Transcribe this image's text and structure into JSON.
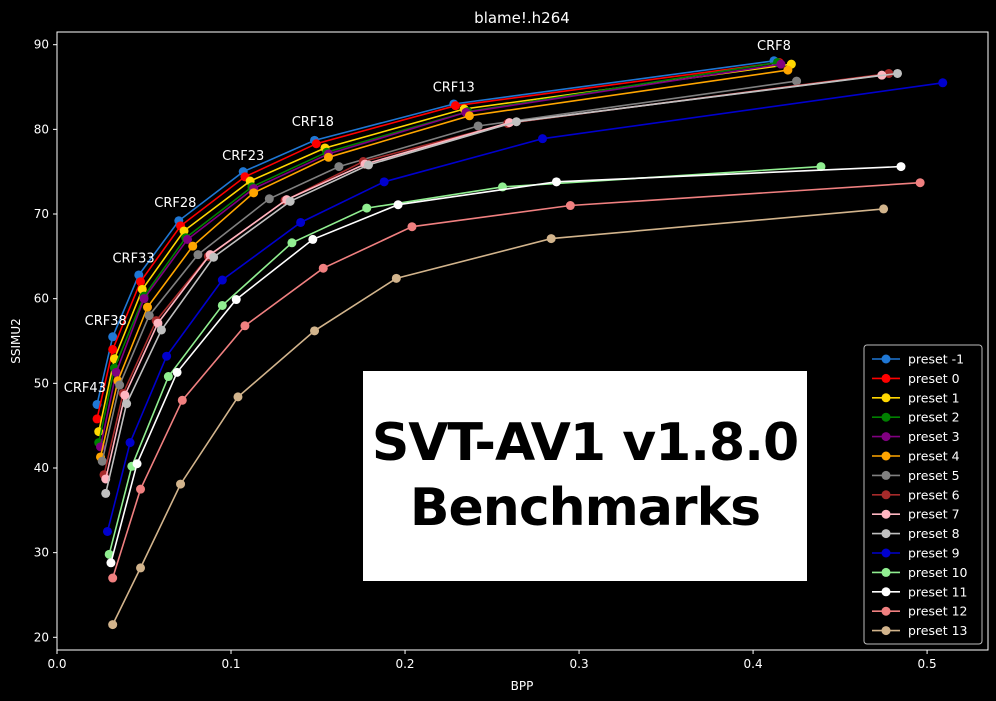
{
  "chart_data": {
    "type": "line",
    "title": "blame!.h264",
    "xlabel": "BPP",
    "ylabel": "SSIMU2",
    "xlim": [
      0.0,
      0.535
    ],
    "ylim": [
      18.5,
      91.5
    ],
    "xticks": [
      0.0,
      0.1,
      0.2,
      0.3,
      0.4,
      0.5
    ],
    "xtick_labels": [
      "0.0",
      "0.1",
      "0.2",
      "0.3",
      "0.4",
      "0.5"
    ],
    "yticks": [
      20,
      30,
      40,
      50,
      60,
      70,
      80,
      90
    ],
    "ytick_labels": [
      "20",
      "30",
      "40",
      "50",
      "60",
      "70",
      "80",
      "90"
    ],
    "grid": false,
    "legend_position": "lower-right",
    "annotations": [
      {
        "text": "CRF8",
        "x": 0.412,
        "y": 89.4
      },
      {
        "text": "CRF13",
        "x": 0.228,
        "y": 84.5
      },
      {
        "text": "CRF18",
        "x": 0.147,
        "y": 80.4
      },
      {
        "text": "CRF23",
        "x": 0.107,
        "y": 76.4
      },
      {
        "text": "CRF28",
        "x": 0.068,
        "y": 70.8
      },
      {
        "text": "CRF33",
        "x": 0.044,
        "y": 64.3
      },
      {
        "text": "CRF38",
        "x": 0.028,
        "y": 56.9
      },
      {
        "text": "CRF43",
        "x": 0.016,
        "y": 49.0
      }
    ],
    "series": [
      {
        "name": "preset -1",
        "color": "#1f77d4",
        "x": [
          0.023,
          0.032,
          0.047,
          0.07,
          0.107,
          0.148,
          0.228,
          0.412
        ],
        "y": [
          47.5,
          55.5,
          62.8,
          69.2,
          75.0,
          78.7,
          83.0,
          88.1
        ]
      },
      {
        "name": "preset 0",
        "color": "#ff0000",
        "x": [
          0.023,
          0.032,
          0.048,
          0.071,
          0.108,
          0.149,
          0.229,
          0.415
        ],
        "y": [
          45.8,
          54.0,
          62.0,
          68.6,
          74.4,
          78.3,
          82.8,
          87.9
        ]
      },
      {
        "name": "preset 1",
        "color": "#ffd700",
        "x": [
          0.024,
          0.033,
          0.049,
          0.073,
          0.111,
          0.154,
          0.234,
          0.422
        ],
        "y": [
          44.3,
          52.9,
          61.1,
          68.0,
          73.9,
          77.8,
          82.4,
          87.7
        ]
      },
      {
        "name": "preset 2",
        "color": "#008000",
        "x": [
          0.024,
          0.033,
          0.05,
          0.074,
          0.112,
          0.155,
          0.236,
          0.414
        ],
        "y": [
          43.0,
          51.8,
          60.3,
          67.2,
          73.2,
          77.3,
          82.1,
          87.9
        ]
      },
      {
        "name": "preset 3",
        "color": "#800080",
        "x": [
          0.025,
          0.034,
          0.05,
          0.075,
          0.113,
          0.156,
          0.235,
          0.416
        ],
        "y": [
          42.5,
          51.3,
          60.0,
          67.0,
          73.0,
          77.1,
          82.0,
          87.7
        ]
      },
      {
        "name": "preset 4",
        "color": "#ffa500",
        "x": [
          0.025,
          0.035,
          0.052,
          0.078,
          0.113,
          0.156,
          0.237,
          0.42
        ],
        "y": [
          41.3,
          50.3,
          59.0,
          66.2,
          72.5,
          76.7,
          81.6,
          87.0
        ]
      },
      {
        "name": "preset 5",
        "color": "#808080",
        "x": [
          0.026,
          0.036,
          0.053,
          0.081,
          0.122,
          0.162,
          0.242,
          0.425
        ],
        "y": [
          40.8,
          49.8,
          58.0,
          65.2,
          71.8,
          75.6,
          80.4,
          85.7
        ]
      },
      {
        "name": "preset 6",
        "color": "#a52a2a",
        "x": [
          0.027,
          0.038,
          0.057,
          0.087,
          0.131,
          0.176,
          0.259,
          0.478
        ],
        "y": [
          39.2,
          48.8,
          57.4,
          65.0,
          71.6,
          76.2,
          80.7,
          86.6
        ]
      },
      {
        "name": "preset 7",
        "color": "#ffb6c1",
        "x": [
          0.028,
          0.039,
          0.058,
          0.088,
          0.132,
          0.177,
          0.26,
          0.474
        ],
        "y": [
          38.7,
          48.6,
          57.1,
          65.2,
          71.7,
          75.9,
          80.8,
          86.4
        ]
      },
      {
        "name": "preset 8",
        "color": "#c0c0c0",
        "x": [
          0.028,
          0.04,
          0.06,
          0.09,
          0.134,
          0.179,
          0.264,
          0.483
        ],
        "y": [
          37.0,
          47.6,
          56.3,
          64.9,
          71.5,
          75.8,
          80.9,
          86.6
        ]
      },
      {
        "name": "preset 9",
        "color": "#0000cd",
        "x": [
          0.029,
          0.042,
          0.063,
          0.095,
          0.14,
          0.188,
          0.279,
          0.509
        ],
        "y": [
          32.5,
          43.0,
          53.2,
          62.2,
          69.0,
          73.8,
          78.9,
          85.5
        ]
      },
      {
        "name": "preset 10",
        "color": "#90ee90",
        "x": [
          0.03,
          0.043,
          0.064,
          0.095,
          0.135,
          0.178,
          0.256,
          0.439
        ],
        "y": [
          29.8,
          40.2,
          50.8,
          59.2,
          66.6,
          70.7,
          73.2,
          75.6
        ]
      },
      {
        "name": "preset 11",
        "color": "#ffffff",
        "x": [
          0.031,
          0.046,
          0.069,
          0.103,
          0.147,
          0.196,
          0.287,
          0.485
        ],
        "y": [
          28.8,
          40.5,
          51.3,
          59.9,
          67.0,
          71.1,
          73.8,
          75.6
        ]
      },
      {
        "name": "preset 12",
        "color": "#f08080",
        "x": [
          0.032,
          0.048,
          0.072,
          0.108,
          0.153,
          0.204,
          0.295,
          0.496
        ],
        "y": [
          27.0,
          37.5,
          48.0,
          56.8,
          63.6,
          68.5,
          71.0,
          73.7
        ]
      },
      {
        "name": "preset 13",
        "color": "#d2b48c",
        "x": [
          0.032,
          0.048,
          0.071,
          0.104,
          0.148,
          0.195,
          0.284,
          0.475
        ],
        "y": [
          21.5,
          28.2,
          38.1,
          48.4,
          56.2,
          62.4,
          67.1,
          70.6
        ]
      }
    ]
  },
  "overlay": {
    "line1": "SVT-AV1 v1.8.0",
    "line2": "Benchmarks"
  }
}
